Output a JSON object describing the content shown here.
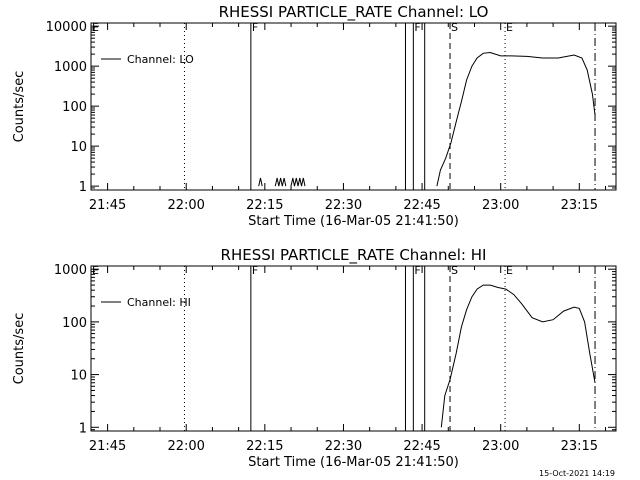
{
  "footer": {
    "timestamp": "15-Oct-2021 14:19"
  },
  "chart_data": [
    {
      "type": "line",
      "title": "RHESSI PARTICLE_RATE Channel: LO",
      "xlabel": "Start Time (16-Mar-05 21:41:50)",
      "ylabel": "Counts/sec",
      "yscale": "log",
      "xlim": [
        "21:41:50",
        "23:22:00"
      ],
      "ylim": [
        0.8,
        12000
      ],
      "x_ticks": [
        "21:45",
        "22:00",
        "22:15",
        "22:30",
        "22:45",
        "23:00",
        "23:15"
      ],
      "y_ticks": [
        1,
        10,
        100,
        1000,
        10000
      ],
      "y_tick_labels": [
        "1",
        "10",
        "100",
        "1000",
        "10000"
      ],
      "legend": {
        "position": "top-left",
        "entries": [
          "Channel: LO"
        ]
      },
      "event_markers": [
        {
          "time": "21:41:50",
          "label": "E",
          "style": "dotted"
        },
        {
          "time": "21:59:40",
          "label": "",
          "style": "dotted"
        },
        {
          "time": "22:12:20",
          "label": "F",
          "style": "solid"
        },
        {
          "time": "22:41:50",
          "label": "",
          "style": "solid"
        },
        {
          "time": "22:43:20",
          "label": "F",
          "style": "solid"
        },
        {
          "time": "22:45:30",
          "label": "",
          "style": "solid"
        },
        {
          "time": "22:50:20",
          "label": "S",
          "style": "dashed"
        },
        {
          "time": "23:00:50",
          "label": "E",
          "style": "dotted"
        },
        {
          "time": "23:18:00",
          "label": "",
          "style": "dashdot"
        }
      ],
      "series": [
        {
          "name": "Channel: LO",
          "segments": [
            {
              "x": [
                "22:13:50",
                "22:14:10",
                "22:14:30"
              ],
              "y": [
                1,
                1.6,
                1
              ]
            },
            {
              "x": [
                "22:17:00",
                "22:17:20",
                "22:17:40",
                "22:18:00",
                "22:18:20",
                "22:18:40",
                "22:19:00"
              ],
              "y": [
                1,
                1.6,
                1,
                1.6,
                1,
                1.6,
                1
              ]
            },
            {
              "x": [
                "22:20:00",
                "22:20:20",
                "22:20:40",
                "22:21:00",
                "22:21:20",
                "22:21:40",
                "22:22:00",
                "22:22:20",
                "22:22:40"
              ],
              "y": [
                1,
                1.6,
                1,
                1.6,
                1,
                1.6,
                1,
                1.6,
                1
              ]
            },
            {
              "x": [
                "22:47:50",
                "22:48:30",
                "22:49:30",
                "22:50:30",
                "22:51:30",
                "22:52:30",
                "22:53:30",
                "22:54:30",
                "22:55:30",
                "22:56:40",
                "22:58:00",
                "23:00:00",
                "23:02:00",
                "23:05:00",
                "23:08:00",
                "23:11:00",
                "23:14:00",
                "23:15:30",
                "23:16:30",
                "23:17:30",
                "23:18:00"
              ],
              "y": [
                1,
                2.5,
                5,
                12,
                40,
                130,
                450,
                1000,
                1600,
                2100,
                2200,
                1800,
                1800,
                1750,
                1600,
                1600,
                1900,
                1600,
                800,
                200,
                60
              ]
            }
          ]
        }
      ]
    },
    {
      "type": "line",
      "title": "RHESSI PARTICLE_RATE Channel: HI",
      "xlabel": "Start Time (16-Mar-05 21:41:50)",
      "ylabel": "Counts/sec",
      "yscale": "log",
      "xlim": [
        "21:41:50",
        "23:22:00"
      ],
      "ylim": [
        0.85,
        1150
      ],
      "x_ticks": [
        "21:45",
        "22:00",
        "22:15",
        "22:30",
        "22:45",
        "23:00",
        "23:15"
      ],
      "y_ticks": [
        1,
        10,
        100,
        1000
      ],
      "y_tick_labels": [
        "1",
        "10",
        "100",
        "1000"
      ],
      "legend": {
        "position": "top-left",
        "entries": [
          "Channel: HI"
        ]
      },
      "event_markers": [
        {
          "time": "21:41:50",
          "label": "E",
          "style": "dotted"
        },
        {
          "time": "21:59:40",
          "label": "",
          "style": "dotted"
        },
        {
          "time": "22:12:20",
          "label": "F",
          "style": "solid"
        },
        {
          "time": "22:41:50",
          "label": "",
          "style": "solid"
        },
        {
          "time": "22:43:20",
          "label": "F",
          "style": "solid"
        },
        {
          "time": "22:45:30",
          "label": "",
          "style": "solid"
        },
        {
          "time": "22:50:20",
          "label": "S",
          "style": "dashed"
        },
        {
          "time": "23:00:50",
          "label": "E",
          "style": "dotted"
        },
        {
          "time": "23:18:00",
          "label": "",
          "style": "dashdot"
        }
      ],
      "series": [
        {
          "name": "Channel: HI",
          "segments": [
            {
              "x": [
                "22:48:40",
                "22:49:20",
                "22:50:20",
                "22:51:30",
                "22:52:30",
                "22:53:30",
                "22:54:30",
                "22:55:30",
                "22:56:40",
                "22:58:00",
                "22:59:30",
                "23:01:00",
                "23:02:30",
                "23:04:00",
                "23:06:00",
                "23:08:00",
                "23:10:00",
                "23:12:00",
                "23:14:00",
                "23:15:00",
                "23:16:00",
                "23:17:00",
                "23:18:00"
              ],
              "y": [
                1,
                4,
                8,
                25,
                80,
                170,
                300,
                420,
                500,
                500,
                450,
                420,
                330,
                220,
                120,
                100,
                110,
                160,
                190,
                180,
                100,
                25,
                7
              ]
            }
          ]
        }
      ]
    }
  ]
}
